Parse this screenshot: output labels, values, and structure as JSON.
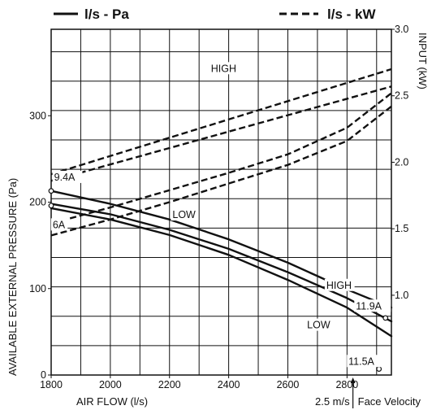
{
  "chart_data": {
    "type": "line",
    "xlabel": "AIR FLOW (l/s)",
    "ylabel": "AVAILABLE EXTERNAL PRESSURE (Pa)",
    "y2label": "INPUT (kW)",
    "xlim": [
      1800,
      2950
    ],
    "ylim": [
      0,
      400
    ],
    "y2lim": [
      0.4,
      3.0
    ],
    "x_ticks": [
      1800,
      2000,
      2200,
      2400,
      2600,
      2800
    ],
    "y_ticks": [
      0,
      100,
      200,
      300
    ],
    "y2_ticks": [
      1.0,
      1.5,
      2.0,
      2.5,
      3.0
    ],
    "y2_tick_labels": [
      "1.0",
      "1.5",
      "2.0",
      "2.5",
      "3.0"
    ],
    "grid": true,
    "legend": [
      {
        "label": "l/s - Pa",
        "style": "solid"
      },
      {
        "label": "l/s - kW",
        "style": "dashed"
      }
    ],
    "series": [
      {
        "axis": "left",
        "style": "solid",
        "x": [
          1800,
          2000,
          2200,
          2400,
          2600,
          2800,
          2950
        ],
        "y": [
          213,
          198,
          180,
          157,
          130,
          99,
          78
        ]
      },
      {
        "axis": "left",
        "style": "solid",
        "x": [
          1800,
          2000,
          2200,
          2400,
          2600,
          2800,
          2950
        ],
        "y": [
          198,
          186,
          168,
          146,
          119,
          89,
          62
        ]
      },
      {
        "axis": "left",
        "style": "solid",
        "x": [
          1800,
          2000,
          2200,
          2400,
          2600,
          2800,
          2950
        ],
        "y": [
          193,
          180,
          162,
          139,
          110,
          78,
          45
        ]
      },
      {
        "axis": "right",
        "style": "dashed",
        "x": [
          1800,
          2950
        ],
        "y": [
          1.91,
          2.7
        ]
      },
      {
        "axis": "right",
        "style": "dashed",
        "x": [
          1800,
          2950
        ],
        "y": [
          1.86,
          2.57
        ]
      },
      {
        "axis": "right",
        "style": "dashed",
        "x": [
          1800,
          2000,
          2200,
          2400,
          2600,
          2800,
          2950
        ],
        "y": [
          1.54,
          1.66,
          1.79,
          1.92,
          2.06,
          2.26,
          2.52
        ]
      },
      {
        "axis": "right",
        "style": "dashed",
        "x": [
          1800,
          2000,
          2200,
          2400,
          2600,
          2800,
          2950
        ],
        "y": [
          1.45,
          1.57,
          1.7,
          1.84,
          1.98,
          2.16,
          2.42
        ]
      }
    ],
    "markers": [
      {
        "x": 1800,
        "y": 213,
        "axis": "left"
      },
      {
        "x": 1800,
        "y": 196,
        "axis": "left"
      },
      {
        "x": 2930,
        "y": 66,
        "axis": "left"
      },
      {
        "x": 2908,
        "y": 7,
        "axis": "left"
      }
    ],
    "annotations": [
      {
        "text": "HIGH",
        "x": 2340,
        "axis": "right",
        "y": 2.68
      },
      {
        "text": "LOW",
        "x": 2210,
        "axis": "right",
        "y": 1.58
      },
      {
        "text": "9.4A",
        "x": 1810,
        "axis": "left",
        "y": 225
      },
      {
        "text": "6A",
        "x": 1805,
        "axis": "left",
        "y": 170
      },
      {
        "text": "HIGH",
        "x": 2730,
        "axis": "left",
        "y": 100
      },
      {
        "text": "11.9A",
        "x": 2830,
        "axis": "left",
        "y": 76
      },
      {
        "text": "LOW",
        "x": 2665,
        "axis": "left",
        "y": 54
      },
      {
        "text": "11.5A",
        "x": 2805,
        "axis": "left",
        "y": 12
      }
    ],
    "face_velocity": {
      "text": "2.5 m/s",
      "text2": "Face Velocity",
      "x": 2820
    }
  }
}
